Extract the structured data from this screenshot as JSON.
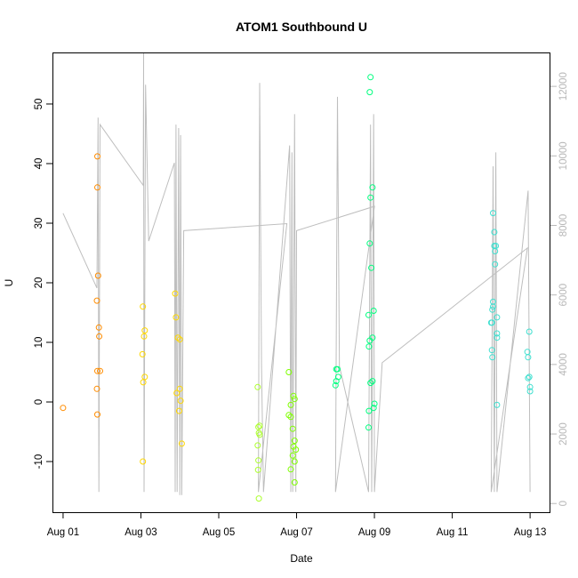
{
  "chart_data": {
    "type": "scatter",
    "title": "ATOM1 Southbound U",
    "xlabel": "Date",
    "ylabel": "U",
    "x_ticks": [
      "Aug 01",
      "Aug 03",
      "Aug 05",
      "Aug 07",
      "Aug 09",
      "Aug 11",
      "Aug 13"
    ],
    "x_tick_days": [
      1,
      3,
      5,
      7,
      9,
      11,
      13
    ],
    "xlim": [
      0.75,
      13.5
    ],
    "y_ticks": [
      -10,
      0,
      10,
      20,
      30,
      40,
      50
    ],
    "ylim": [
      -18.5,
      58.5
    ],
    "y2_ticks": [
      0,
      2000,
      4000,
      6000,
      8000,
      10000,
      12000
    ],
    "y2lim": [
      -250,
      12950
    ],
    "grid": false,
    "colors": {
      "line": "#bebebe",
      "right_axis": "#b8b8b8",
      "palette": [
        "#ff8c00",
        "#ffd700",
        "#ffff00",
        "#adff2f",
        "#7fff00",
        "#00ff7f",
        "#40e0d0"
      ]
    },
    "series": [
      {
        "color_index": 0,
        "points": [
          [
            1.0,
            -1
          ],
          [
            1.88,
            41.2
          ],
          [
            1.88,
            36
          ],
          [
            1.9,
            21.2
          ],
          [
            1.87,
            17
          ],
          [
            1.92,
            12.5
          ],
          [
            1.93,
            11
          ],
          [
            1.88,
            5.2
          ],
          [
            1.95,
            5.2
          ],
          [
            1.87,
            2.2
          ],
          [
            1.88,
            -2.1
          ]
        ]
      },
      {
        "color_index": 1,
        "points": [
          [
            3.05,
            16
          ],
          [
            3.1,
            12
          ],
          [
            3.08,
            11
          ],
          [
            3.04,
            8
          ],
          [
            3.1,
            4.2
          ],
          [
            3.06,
            3.3
          ],
          [
            3.05,
            -10
          ],
          [
            3.88,
            18.2
          ],
          [
            3.9,
            14.2
          ],
          [
            3.95,
            10.8
          ],
          [
            4.0,
            10.5
          ],
          [
            3.92,
            1.5
          ],
          [
            4.0,
            2.2
          ],
          [
            4.02,
            0.2
          ],
          [
            3.98,
            -1.5
          ],
          [
            4.05,
            -7
          ]
        ]
      },
      {
        "color_index": 3,
        "points": [
          [
            6.0,
            2.5
          ],
          [
            6.02,
            -4.2
          ],
          [
            6.05,
            -4
          ],
          [
            6.03,
            -5.2
          ],
          [
            6.05,
            -5.5
          ],
          [
            6.0,
            -7.3
          ],
          [
            6.02,
            -9.8
          ],
          [
            6.01,
            -11.4
          ],
          [
            6.03,
            -16.2
          ]
        ]
      },
      {
        "color_index": 4,
        "points": [
          [
            6.8,
            5
          ],
          [
            6.92,
            1
          ],
          [
            6.95,
            0.5
          ],
          [
            6.85,
            -0.5
          ],
          [
            6.8,
            -2.2
          ],
          [
            6.85,
            -2.5
          ],
          [
            6.9,
            -4.5
          ],
          [
            6.95,
            -6.5
          ],
          [
            6.92,
            -7.5
          ],
          [
            6.98,
            -8
          ],
          [
            6.9,
            -9
          ],
          [
            6.95,
            -10
          ],
          [
            6.85,
            -11.3
          ],
          [
            6.95,
            -13.5
          ]
        ]
      },
      {
        "color_index": 5,
        "points": [
          [
            8.02,
            5.5
          ],
          [
            8.05,
            5.5
          ],
          [
            8.07,
            4.2
          ],
          [
            8.02,
            3.5
          ],
          [
            8.0,
            2.8
          ],
          [
            8.9,
            54.5
          ],
          [
            8.88,
            52
          ],
          [
            8.95,
            36
          ],
          [
            8.9,
            34.3
          ],
          [
            8.88,
            26.6
          ],
          [
            8.92,
            22.5
          ],
          [
            8.98,
            15.3
          ],
          [
            8.85,
            14.6
          ],
          [
            8.95,
            10.8
          ],
          [
            8.88,
            10.3
          ],
          [
            8.86,
            9.3
          ],
          [
            8.95,
            3.5
          ],
          [
            8.9,
            3.2
          ],
          [
            9.0,
            -0.3
          ],
          [
            8.98,
            -1
          ],
          [
            8.86,
            -1.5
          ],
          [
            8.85,
            -4.3
          ]
        ]
      },
      {
        "color_index": 6,
        "points": [
          [
            12.05,
            31.7
          ],
          [
            12.08,
            28.5
          ],
          [
            12.08,
            26.2
          ],
          [
            12.12,
            26.2
          ],
          [
            12.1,
            25.3
          ],
          [
            12.1,
            23.1
          ],
          [
            12.05,
            16.8
          ],
          [
            12.05,
            16
          ],
          [
            12.03,
            15.5
          ],
          [
            12.15,
            14.2
          ],
          [
            12.0,
            13.3
          ],
          [
            12.02,
            13.3
          ],
          [
            12.15,
            11.5
          ],
          [
            12.15,
            10.8
          ],
          [
            12.02,
            8.7
          ],
          [
            12.03,
            7.5
          ],
          [
            12.15,
            -0.5
          ],
          [
            12.98,
            11.8
          ],
          [
            12.93,
            8.4
          ],
          [
            12.95,
            7.5
          ],
          [
            12.98,
            4.2
          ],
          [
            12.95,
            4
          ],
          [
            13.0,
            2.5
          ],
          [
            13.0,
            1.8
          ]
        ]
      }
    ],
    "line_series": {
      "axis": "right",
      "points": [
        [
          1.0,
          8350
        ],
        [
          1.87,
          6200
        ],
        [
          1.9,
          11100
        ],
        [
          1.92,
          330
        ],
        [
          1.95,
          10900
        ],
        [
          3.06,
          9150
        ],
        [
          3.07,
          12950
        ],
        [
          3.08,
          330
        ],
        [
          3.12,
          12050
        ],
        [
          3.2,
          7550
        ],
        [
          3.86,
          9800
        ],
        [
          3.88,
          330
        ],
        [
          3.9,
          10900
        ],
        [
          3.93,
          330
        ],
        [
          3.97,
          10800
        ],
        [
          4.0,
          240
        ],
        [
          4.02,
          10600
        ],
        [
          4.05,
          240
        ],
        [
          4.1,
          7850
        ],
        [
          6.75,
          8050
        ],
        [
          6.02,
          330
        ],
        [
          6.05,
          12100
        ],
        [
          6.1,
          3950
        ],
        [
          6.15,
          330
        ],
        [
          6.82,
          10300
        ],
        [
          6.85,
          330
        ],
        [
          6.88,
          10100
        ],
        [
          6.9,
          330
        ],
        [
          6.95,
          11200
        ],
        [
          6.98,
          330
        ],
        [
          7.0,
          7850
        ],
        [
          9.0,
          8550
        ],
        [
          8.0,
          330
        ],
        [
          8.05,
          11700
        ],
        [
          8.1,
          3950
        ],
        [
          8.85,
          330
        ],
        [
          8.9,
          10900
        ],
        [
          8.93,
          330
        ],
        [
          8.98,
          11200
        ],
        [
          9.0,
          330
        ],
        [
          9.2,
          4050
        ],
        [
          12.93,
          7350
        ],
        [
          12.0,
          330
        ],
        [
          12.05,
          9700
        ],
        [
          12.08,
          330
        ],
        [
          12.12,
          10100
        ],
        [
          12.15,
          330
        ],
        [
          12.95,
          9000
        ],
        [
          13.0,
          330
        ]
      ]
    }
  }
}
